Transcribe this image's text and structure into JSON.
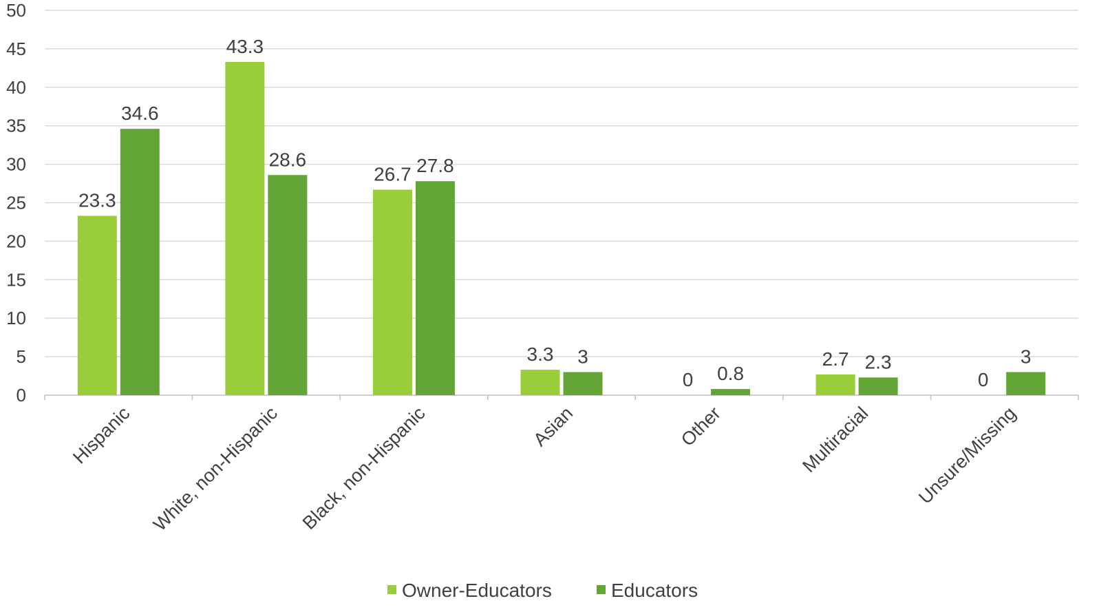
{
  "chart_data": {
    "type": "bar",
    "title": "",
    "xlabel": "",
    "ylabel": "",
    "ylim": [
      0,
      50
    ],
    "yticks": [
      0,
      5,
      10,
      15,
      20,
      25,
      30,
      35,
      40,
      45,
      50
    ],
    "grid": true,
    "legend_position": "bottom",
    "categories": [
      "Hispanic",
      "White, non-Hispanic",
      "Black, non-Hispanic",
      "Asian",
      "Other",
      "Multiracial",
      "Unsure/Missing"
    ],
    "series": [
      {
        "name": "Owner-Educators",
        "color": "#9ACD3A",
        "values": [
          23.3,
          43.3,
          26.7,
          3.3,
          0,
          2.7,
          0
        ]
      },
      {
        "name": "Educators",
        "color": "#63A637",
        "values": [
          34.6,
          28.6,
          27.8,
          3,
          0.8,
          2.3,
          3
        ]
      }
    ]
  }
}
